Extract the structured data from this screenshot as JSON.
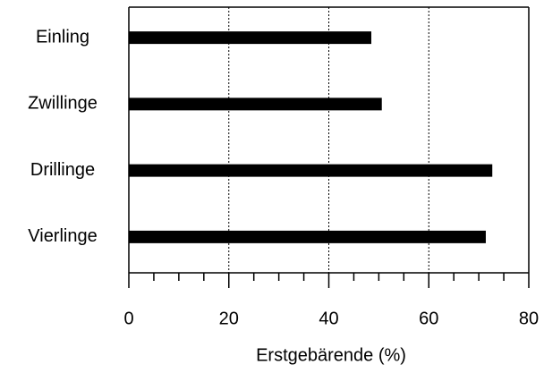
{
  "chart_data": {
    "type": "barh",
    "categories": [
      "Einling",
      "Zwillinge",
      "Drillinge",
      "Vierlinge"
    ],
    "values": [
      48.5,
      50.6,
      72.7,
      71.4
    ],
    "color": "#000000",
    "xlabel": "Erstgebärende (%)",
    "xlim": [
      0,
      80
    ],
    "xticks": [
      0,
      20,
      40,
      60,
      80
    ],
    "grid": true
  }
}
